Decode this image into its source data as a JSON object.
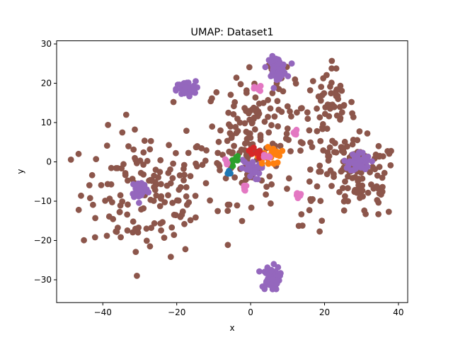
{
  "chart_data": {
    "type": "scatter",
    "title": "UMAP: Dataset1",
    "xlabel": "x",
    "ylabel": "y",
    "xlim": [
      -52.5,
      42.5
    ],
    "ylim": [
      -35.8,
      30.8
    ],
    "xticks": [
      -40,
      -20,
      0,
      20,
      40
    ],
    "yticks": [
      -30,
      -20,
      -10,
      0,
      10,
      20,
      30
    ],
    "grid": false,
    "legend": "none",
    "series": [
      {
        "color": "#8c564b",
        "clusters": [
          {
            "x": -28,
            "y": -8,
            "sx": 9,
            "sy": 8,
            "n": 150
          },
          {
            "x": 0,
            "y": 6,
            "sx": 6,
            "sy": 8,
            "n": 150
          },
          {
            "x": 21,
            "y": 14,
            "sx": 3.5,
            "sy": 5,
            "n": 60
          },
          {
            "x": 30,
            "y": -5,
            "sx": 5,
            "sy": 5,
            "n": 90
          },
          {
            "x": 25,
            "y": 2,
            "sx": 4,
            "sy": 3,
            "n": 30
          },
          {
            "x": 8,
            "y": 17,
            "sx": 3,
            "sy": 3,
            "n": 15
          },
          {
            "x": 18,
            "y": -8,
            "sx": 3,
            "sy": 4,
            "n": 12
          }
        ]
      },
      {
        "color": "#9467bd",
        "clusters": [
          {
            "x": 7,
            "y": 24,
            "sx": 1.3,
            "sy": 1.3,
            "n": 55
          },
          {
            "x": -17.5,
            "y": 18.5,
            "sx": 1.3,
            "sy": 1.0,
            "n": 55
          },
          {
            "x": -30,
            "y": -7,
            "sx": 1.1,
            "sy": 1.2,
            "n": 45
          },
          {
            "x": 29.5,
            "y": 0,
            "sx": 1.4,
            "sy": 1.3,
            "n": 50
          },
          {
            "x": 5.5,
            "y": -29.5,
            "sx": 1.2,
            "sy": 1.5,
            "n": 55
          },
          {
            "x": 0,
            "y": -2,
            "sx": 1.3,
            "sy": 1.3,
            "n": 25
          }
        ]
      },
      {
        "color": "#ff7f0e",
        "clusters": [
          {
            "x": 5,
            "y": 1.5,
            "sx": 1.6,
            "sy": 1.3,
            "n": 25
          }
        ]
      },
      {
        "color": "#d62728",
        "clusters": [
          {
            "x": 1.5,
            "y": 2.5,
            "sx": 1.0,
            "sy": 0.9,
            "n": 10
          }
        ]
      },
      {
        "color": "#2ca02c",
        "clusters": [
          {
            "x": -4.5,
            "y": 0.5,
            "sx": 0.7,
            "sy": 0.7,
            "n": 6
          }
        ]
      },
      {
        "color": "#1f77b4",
        "clusters": [
          {
            "x": -6,
            "y": -2.8,
            "sx": 0.5,
            "sy": 0.5,
            "n": 5
          }
        ]
      },
      {
        "color": "#e377c2",
        "clusters": [
          {
            "x": 2,
            "y": 18.5,
            "sx": 0.5,
            "sy": 0.4,
            "n": 8
          },
          {
            "x": 12,
            "y": 7.3,
            "sx": 0.5,
            "sy": 0.4,
            "n": 8
          },
          {
            "x": 13,
            "y": -8.5,
            "sx": 0.4,
            "sy": 0.5,
            "n": 8
          },
          {
            "x": -6.5,
            "y": 0,
            "sx": 0.4,
            "sy": 0.4,
            "n": 6
          },
          {
            "x": 4.5,
            "y": 1.2,
            "sx": 0.4,
            "sy": 0.4,
            "n": 6
          },
          {
            "x": -1.5,
            "y": -7,
            "sx": 0.4,
            "sy": 0.5,
            "n": 7
          }
        ]
      }
    ]
  }
}
